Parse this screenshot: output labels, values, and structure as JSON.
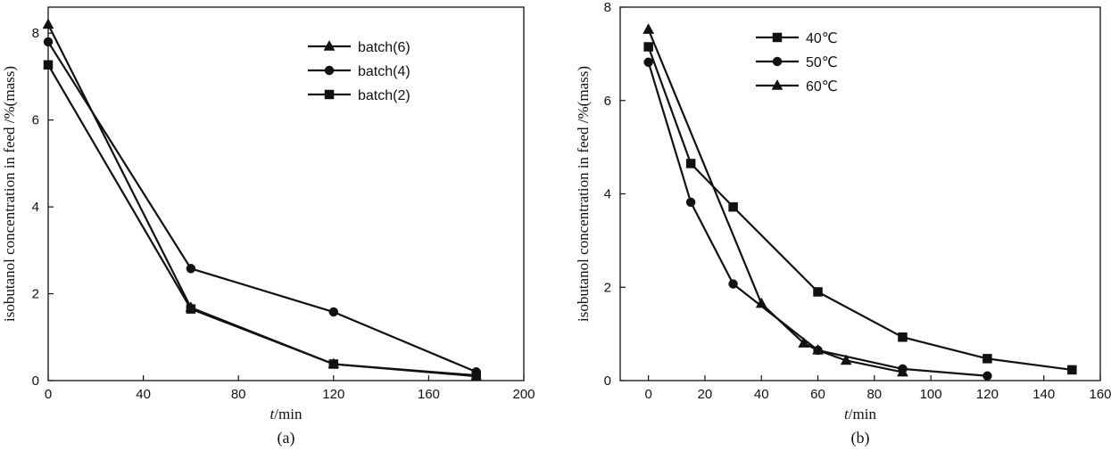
{
  "chart_data": [
    {
      "type": "line",
      "panel_label": "(a)",
      "xlabel_italic": "t",
      "xlabel_rest": "/min",
      "ylabel": "isobutanol concentration in feed /%(mass)",
      "xlim": [
        0,
        200
      ],
      "ylim": [
        0,
        8.6
      ],
      "xticks": [
        0,
        40,
        80,
        120,
        160,
        200
      ],
      "yticks": [
        0,
        2,
        4,
        6,
        8
      ],
      "legend_position": "top-right",
      "series": [
        {
          "name": "batch(6)",
          "marker": "triangle",
          "x": [
            0,
            60,
            120,
            180
          ],
          "y": [
            8.2,
            1.68,
            0.38,
            0.1
          ]
        },
        {
          "name": "batch(4)",
          "marker": "circle",
          "x": [
            0,
            60,
            120,
            180
          ],
          "y": [
            7.8,
            2.58,
            1.58,
            0.2
          ]
        },
        {
          "name": "batch(2)",
          "marker": "square",
          "x": [
            0,
            60,
            120,
            180
          ],
          "y": [
            7.27,
            1.65,
            0.38,
            0.12
          ]
        }
      ]
    },
    {
      "type": "line",
      "panel_label": "(b)",
      "xlabel_italic": "t",
      "xlabel_rest": "/min",
      "ylabel": "isobutanol concentration in feed /%(mass)",
      "xlim": [
        -10,
        160
      ],
      "ylim": [
        0,
        8
      ],
      "xticks": [
        0,
        20,
        40,
        60,
        80,
        100,
        120,
        140,
        160
      ],
      "yticks": [
        0,
        2,
        4,
        6,
        8
      ],
      "legend_position": "top-left",
      "series": [
        {
          "name": "40℃",
          "marker": "square",
          "x": [
            0,
            15,
            30,
            60,
            90,
            120,
            150
          ],
          "y": [
            7.15,
            4.65,
            3.72,
            1.9,
            0.93,
            0.47,
            0.23
          ]
        },
        {
          "name": "50℃",
          "marker": "circle",
          "x": [
            0,
            15,
            30,
            60,
            90,
            120
          ],
          "y": [
            6.82,
            3.82,
            2.07,
            0.65,
            0.25,
            0.1
          ]
        },
        {
          "name": "60℃",
          "marker": "triangle",
          "x": [
            0,
            40,
            55,
            60,
            70,
            90
          ],
          "y": [
            7.52,
            1.65,
            0.8,
            0.65,
            0.43,
            0.18
          ]
        }
      ]
    }
  ]
}
